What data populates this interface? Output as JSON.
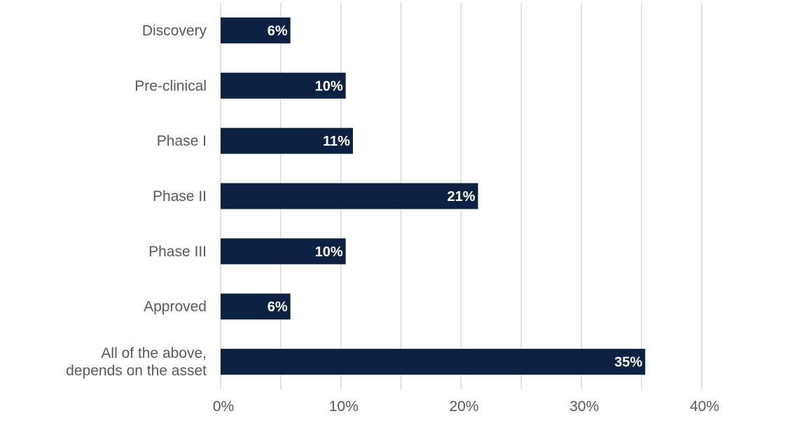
{
  "chart_data": {
    "type": "bar",
    "orientation": "horizontal",
    "categories": [
      "Discovery",
      "Pre-clinical",
      "Phase I",
      "Phase II",
      "Phase III",
      "Approved",
      "All of the above,\ndepends on the asset"
    ],
    "values": [
      5.8,
      10.4,
      11,
      21.4,
      10.4,
      5.8,
      35.3
    ],
    "data_labels": [
      "6%",
      "10%",
      "11%",
      "21%",
      "10%",
      "6%",
      "35%"
    ],
    "xlim": [
      0,
      40
    ],
    "x_ticks": [
      0,
      10,
      20,
      30,
      40
    ],
    "x_tick_labels": [
      "0%",
      "10%",
      "20%",
      "30%",
      "40%"
    ],
    "gridlines": [
      0,
      5,
      10,
      15,
      20,
      25,
      30,
      35,
      40
    ],
    "grid": true,
    "legend": false,
    "colors": {
      "bar": "#0d2143",
      "data_label": "#ffffff",
      "text": "#595959",
      "grid": "#d9d9d9"
    }
  }
}
